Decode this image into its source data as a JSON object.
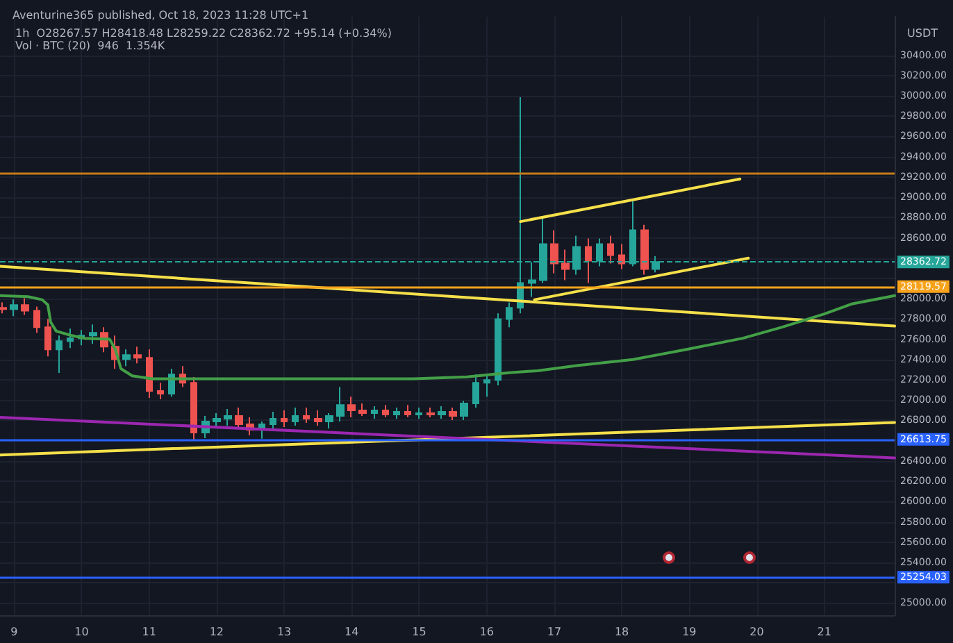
{
  "chart_data": {
    "type": "candlestick",
    "title": "Aventurine365 published, Oct 18, 2023 11:28 UTC+1",
    "subtitle": "1h  O28267.57 H28418.48 L28259.22 C28362.72 +95.14 (+0.34%)",
    "annotations": [
      "USDT",
      "Vol · BTC (20)  946  1.354K"
    ],
    "x": [
      "2023-10-08T20:00",
      "2023-10-09T00:00",
      "2023-10-09T04:00",
      "2023-10-09T08:00",
      "2023-10-09T12:00",
      "2023-10-09T16:00",
      "2023-10-09T20:00",
      "2023-10-10T00:00",
      "2023-10-10T04:00",
      "2023-10-10T08:00",
      "2023-10-10T12:00",
      "2023-10-10T16:00",
      "2023-10-10T20:00",
      "2023-10-11T00:00",
      "2023-10-11T04:00",
      "2023-10-11T08:00",
      "2023-10-11T12:00",
      "2023-10-11T16:00",
      "2023-10-11T20:00",
      "2023-10-12T00:00",
      "2023-10-12T04:00",
      "2023-10-12T08:00",
      "2023-10-12T12:00",
      "2023-10-12T16:00",
      "2023-10-12T20:00",
      "2023-10-13T00:00",
      "2023-10-13T04:00",
      "2023-10-13T08:00",
      "2023-10-13T12:00",
      "2023-10-13T16:00",
      "2023-10-13T20:00",
      "2023-10-14T00:00",
      "2023-10-14T04:00",
      "2023-10-14T08:00",
      "2023-10-14T12:00",
      "2023-10-14T16:00",
      "2023-10-14T20:00",
      "2023-10-15T00:00",
      "2023-10-15T04:00",
      "2023-10-15T08:00",
      "2023-10-15T12:00",
      "2023-10-15T16:00",
      "2023-10-15T20:00",
      "2023-10-16T00:00",
      "2023-10-16T04:00",
      "2023-10-16T08:00",
      "2023-10-16T12:00",
      "2023-10-16T16:00",
      "2023-10-16T20:00",
      "2023-10-17T00:00",
      "2023-10-17T04:00",
      "2023-10-17T08:00",
      "2023-10-17T12:00",
      "2023-10-17T16:00",
      "2023-10-17T20:00",
      "2023-10-18T00:00",
      "2023-10-18T04:00",
      "2023-10-18T08:00",
      "2023-10-18T12:00"
    ],
    "ohlc": [
      [
        27910,
        27964,
        27855,
        27896
      ],
      [
        27896,
        27992,
        27828,
        27937
      ],
      [
        27937,
        28005,
        27841,
        27882
      ],
      [
        27882,
        27923,
        27664,
        27718
      ],
      [
        27718,
        27800,
        27431,
        27500
      ],
      [
        27500,
        27636,
        27268,
        27582
      ],
      [
        27582,
        27705,
        27513,
        27609
      ],
      [
        27609,
        27691,
        27541,
        27636
      ],
      [
        27636,
        27746,
        27554,
        27664
      ],
      [
        27664,
        27718,
        27472,
        27527
      ],
      [
        27527,
        27636,
        27309,
        27404
      ],
      [
        27404,
        27500,
        27336,
        27445
      ],
      [
        27445,
        27527,
        27363,
        27418
      ],
      [
        27418,
        27500,
        27022,
        27090
      ],
      [
        27090,
        27172,
        27008,
        27063
      ],
      [
        27063,
        27309,
        27035,
        27254
      ],
      [
        27254,
        27336,
        27131,
        27172
      ],
      [
        27172,
        27227,
        26600,
        26680
      ],
      [
        26680,
        26844,
        26626,
        26789
      ],
      [
        26789,
        26871,
        26721,
        26817
      ],
      [
        26817,
        26912,
        26748,
        26844
      ],
      [
        26844,
        26926,
        26735,
        26762
      ],
      [
        26762,
        26830,
        26653,
        26708
      ],
      [
        26708,
        26789,
        26620,
        26762
      ],
      [
        26762,
        26885,
        26708,
        26817
      ],
      [
        26817,
        26899,
        26735,
        26789
      ],
      [
        26789,
        26926,
        26748,
        26844
      ],
      [
        26844,
        26926,
        26776,
        26817
      ],
      [
        26817,
        26899,
        26748,
        26789
      ],
      [
        26789,
        26871,
        26721,
        26844
      ],
      [
        26844,
        27131,
        26789,
        26953
      ],
      [
        26953,
        27035,
        26830,
        26899
      ],
      [
        26899,
        26967,
        26844,
        26871
      ],
      [
        26871,
        26940,
        26817,
        26899
      ],
      [
        26899,
        26953,
        26830,
        26858
      ],
      [
        26858,
        26926,
        26817,
        26885
      ],
      [
        26885,
        26953,
        26830,
        26858
      ],
      [
        26858,
        26926,
        26817,
        26871
      ],
      [
        26871,
        26926,
        26830,
        26858
      ],
      [
        26858,
        26940,
        26817,
        26885
      ],
      [
        26885,
        26926,
        26803,
        26844
      ],
      [
        26844,
        26994,
        26803,
        26967
      ],
      [
        26967,
        27254,
        26926,
        27172
      ],
      [
        27172,
        27254,
        27035,
        27199
      ],
      [
        27199,
        27855,
        27145,
        27800
      ],
      [
        27800,
        27964,
        27718,
        27910
      ],
      [
        27910,
        29986,
        27855,
        28155
      ],
      [
        28155,
        28360,
        28019,
        28183
      ],
      [
        28183,
        28797,
        28155,
        28538
      ],
      [
        28538,
        28675,
        28251,
        28347
      ],
      [
        28347,
        28483,
        28183,
        28292
      ],
      [
        28292,
        28620,
        28237,
        28511
      ],
      [
        28511,
        28593,
        28155,
        28374
      ],
      [
        28374,
        28593,
        28319,
        28538
      ],
      [
        28538,
        28620,
        28347,
        28429
      ],
      [
        28429,
        28538,
        28292,
        28347
      ],
      [
        28347,
        28975,
        28319,
        28675
      ],
      [
        28675,
        28729,
        28237,
        28292
      ],
      [
        28292,
        28418.48,
        28259.22,
        28362.72
      ]
    ],
    "series": [
      {
        "type": "line",
        "color": "#f5e04a",
        "x": [
          "2023-10-08T19:00",
          "2023-10-22T01:00"
        ],
        "values": [
          28320,
          27730
        ]
      },
      {
        "type": "line",
        "color": "#f5e04a",
        "x": [
          "2023-10-08T19:00",
          "2023-10-22T01:00"
        ],
        "values": [
          26460,
          26780
        ]
      },
      {
        "type": "line",
        "color": "#f5e04a",
        "x": [
          "2023-10-16T12:00",
          "2023-10-19T18:00"
        ],
        "values": [
          28760,
          29180
        ]
      },
      {
        "type": "line",
        "color": "#f5e04a",
        "x": [
          "2023-10-16T17:00",
          "2023-10-19T21:00"
        ],
        "values": [
          27990,
          28400
        ]
      },
      {
        "type": "line",
        "color": "#9c27b0",
        "x": [
          "2023-10-08T19:00",
          "2023-10-22T01:00"
        ],
        "values": [
          26830,
          26430
        ]
      },
      {
        "type": "line",
        "color": "#43a047",
        "x": [
          "2023-10-08T19:00",
          "2023-10-09T05:00",
          "2023-10-09T10:00",
          "2023-10-09T12:00",
          "2023-10-09T13:00",
          "2023-10-09T15:00",
          "2023-10-09T20:00",
          "2023-10-10T01:00",
          "2023-10-10T10:00",
          "2023-10-10T12:00",
          "2023-10-10T14:00",
          "2023-10-10T18:00",
          "2023-10-11T01:00",
          "2023-10-12T21:00",
          "2023-10-14T22:00",
          "2023-10-15T17:00",
          "2023-10-16T08:00",
          "2023-10-16T18:00",
          "2023-10-17T08:00",
          "2023-10-18T04:00",
          "2023-10-18T23:00",
          "2023-10-19T19:00",
          "2023-10-20T09:00",
          "2023-10-21T00:00",
          "2023-10-21T10:00",
          "2023-10-22T01:00"
        ],
        "values": [
          28030,
          28020,
          27990,
          27940,
          27770,
          27680,
          27640,
          27610,
          27600,
          27500,
          27310,
          27240,
          27210,
          27210,
          27210,
          27230,
          27270,
          27290,
          27340,
          27400,
          27500,
          27610,
          27720,
          27850,
          27950,
          28030
        ]
      }
    ],
    "ref_lines": [
      {
        "axis": "y",
        "value": 29239,
        "label": null,
        "color": "#c77c1a"
      },
      {
        "axis": "y",
        "value": 28362.72,
        "label": "28362.72",
        "color": "#26a69a",
        "line_style": "dashed"
      },
      {
        "axis": "y",
        "value": 28119.57,
        "label": "28119.57",
        "color": "#f7a21b"
      },
      {
        "axis": "y",
        "value": 26613.75,
        "label": "26613.75",
        "color": "#2962ff"
      },
      {
        "axis": "y",
        "value": 25254.03,
        "label": "25254.03",
        "color": "#2962ff"
      }
    ],
    "xlim": [
      "2023-10-08T19:00",
      "2023-10-22T01:00"
    ],
    "xticks": [
      {
        "value": "2023-10-09T00:00",
        "label": "9"
      },
      {
        "value": "2023-10-10T00:00",
        "label": "10"
      },
      {
        "value": "2023-10-11T00:00",
        "label": "11"
      },
      {
        "value": "2023-10-12T00:00",
        "label": "12"
      },
      {
        "value": "2023-10-13T00:00",
        "label": "13"
      },
      {
        "value": "2023-10-14T00:00",
        "label": "14"
      },
      {
        "value": "2023-10-15T00:00",
        "label": "15"
      },
      {
        "value": "2023-10-16T00:00",
        "label": "16"
      },
      {
        "value": "2023-10-17T00:00",
        "label": "17"
      },
      {
        "value": "2023-10-18T00:00",
        "label": "18"
      },
      {
        "value": "2023-10-19T00:00",
        "label": "19"
      },
      {
        "value": "2023-10-20T00:00",
        "label": "20"
      },
      {
        "value": "2023-10-21T00:00",
        "label": "21"
      }
    ],
    "ylim": [
      24880,
      30780
    ],
    "yticks": [
      {
        "value": 25000,
        "label": "25000.00"
      },
      {
        "value": 25200,
        "label": null
      },
      {
        "value": 25400,
        "label": "25400.00"
      },
      {
        "value": 25600,
        "label": "25600.00"
      },
      {
        "value": 25800,
        "label": "25800.00"
      },
      {
        "value": 26000,
        "label": "26000.00"
      },
      {
        "value": 26200,
        "label": "26200.00"
      },
      {
        "value": 26400,
        "label": "26400.00"
      },
      {
        "value": 26600,
        "label": null
      },
      {
        "value": 26800,
        "label": "26800.00"
      },
      {
        "value": 27000,
        "label": "27000.00"
      },
      {
        "value": 27200,
        "label": "27200.00"
      },
      {
        "value": 27400,
        "label": "27400.00"
      },
      {
        "value": 27600,
        "label": "27600.00"
      },
      {
        "value": 27800,
        "label": "27800.00"
      },
      {
        "value": 28000,
        "label": "28000.00"
      },
      {
        "value": 28200,
        "label": null
      },
      {
        "value": 28400,
        "label": null
      },
      {
        "value": 28600,
        "label": "28600.00"
      },
      {
        "value": 28800,
        "label": "28800.00"
      },
      {
        "value": 29000,
        "label": "29000.00"
      },
      {
        "value": 29200,
        "label": "29200.00"
      },
      {
        "value": 29400,
        "label": "29400.00"
      },
      {
        "value": 29600,
        "label": "29600.00"
      },
      {
        "value": 29800,
        "label": "29800.00"
      },
      {
        "value": 30000,
        "label": "30000.00"
      },
      {
        "value": 30200,
        "label": "30200.00"
      },
      {
        "value": 30400,
        "label": "30400.00"
      }
    ],
    "grid": true
  }
}
